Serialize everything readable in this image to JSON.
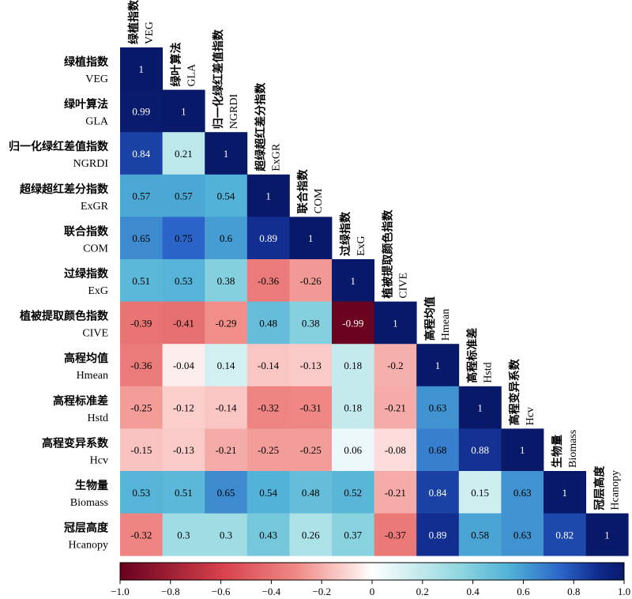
{
  "chart_data": {
    "type": "heatmap",
    "variables": [
      {
        "cn": "绿植指数",
        "en": "VEG"
      },
      {
        "cn": "绿叶算法",
        "en": "GLA"
      },
      {
        "cn": "归一化绿红差值指数",
        "en": "NGRDI"
      },
      {
        "cn": "超绿超红差分指数",
        "en": "ExGR"
      },
      {
        "cn": "联合指数",
        "en": "COM"
      },
      {
        "cn": "过绿指数",
        "en": "ExG"
      },
      {
        "cn": "植被提取颜色指数",
        "en": "CIVE"
      },
      {
        "cn": "高程均值",
        "en": "Hmean"
      },
      {
        "cn": "高程标准差",
        "en": "Hstd"
      },
      {
        "cn": "高程变异系数",
        "en": "Hcv"
      },
      {
        "cn": "生物量",
        "en": "Biomass"
      },
      {
        "cn": "冠层高度",
        "en": "Hcanopy"
      }
    ],
    "matrix": [
      [
        "1"
      ],
      [
        "0.99",
        "1"
      ],
      [
        "0.84",
        "0.21",
        "1"
      ],
      [
        "0.57",
        "0.57",
        "0.54",
        "1"
      ],
      [
        "0.65",
        "0.75",
        "0.6",
        "0.89",
        "1"
      ],
      [
        "0.51",
        "0.53",
        "0.38",
        "-0.36",
        "-0.26",
        "1"
      ],
      [
        "-0.39",
        "-0.41",
        "-0.29",
        "0.48",
        "0.38",
        "-0.99",
        "1"
      ],
      [
        "-0.36",
        "-0.04",
        "0.14",
        "-0.14",
        "-0.13",
        "0.18",
        "-0.2",
        "1"
      ],
      [
        "-0.25",
        "-0.12",
        "-0.14",
        "-0.32",
        "-0.31",
        "0.18",
        "-0.21",
        "0.63",
        "1"
      ],
      [
        "-0.15",
        "-0.13",
        "-0.21",
        "-0.25",
        "-0.25",
        "0.06",
        "-0.08",
        "0.68",
        "0.88",
        "1"
      ],
      [
        "0.53",
        "0.51",
        "0.65",
        "0.54",
        "0.48",
        "0.52",
        "-0.21",
        "0.84",
        "0.15",
        "0.63",
        "1"
      ],
      [
        "-0.32",
        "0.3",
        "0.3",
        "0.43",
        "0.26",
        "0.37",
        "-0.37",
        "0.89",
        "0.58",
        "0.63",
        "0.82",
        "1"
      ]
    ],
    "colorbar": {
      "range": [
        -1.0,
        1.0
      ],
      "ticks": [
        "−1.0",
        "−0.8",
        "−0.6",
        "−0.4",
        "−0.2",
        "0",
        "0.2",
        "0.4",
        "0.6",
        "0.8",
        "1.0"
      ],
      "tick_values": [
        -1.0,
        -0.8,
        -0.6,
        -0.4,
        -0.2,
        0,
        0.2,
        0.4,
        0.6,
        0.8,
        1.0
      ]
    },
    "colorscale": [
      {
        "v": -1.0,
        "c": "#67001f"
      },
      {
        "v": -0.6,
        "c": "#d6404a"
      },
      {
        "v": -0.3,
        "c": "#f08a86"
      },
      {
        "v": -0.1,
        "c": "#fbd5d2"
      },
      {
        "v": 0.0,
        "c": "#ffffff"
      },
      {
        "v": 0.15,
        "c": "#cfeef0"
      },
      {
        "v": 0.35,
        "c": "#8fd6e0"
      },
      {
        "v": 0.55,
        "c": "#4fb0d6"
      },
      {
        "v": 0.75,
        "c": "#2b64c8"
      },
      {
        "v": 0.9,
        "c": "#0f2a8c"
      },
      {
        "v": 1.0,
        "c": "#08196a"
      }
    ]
  }
}
